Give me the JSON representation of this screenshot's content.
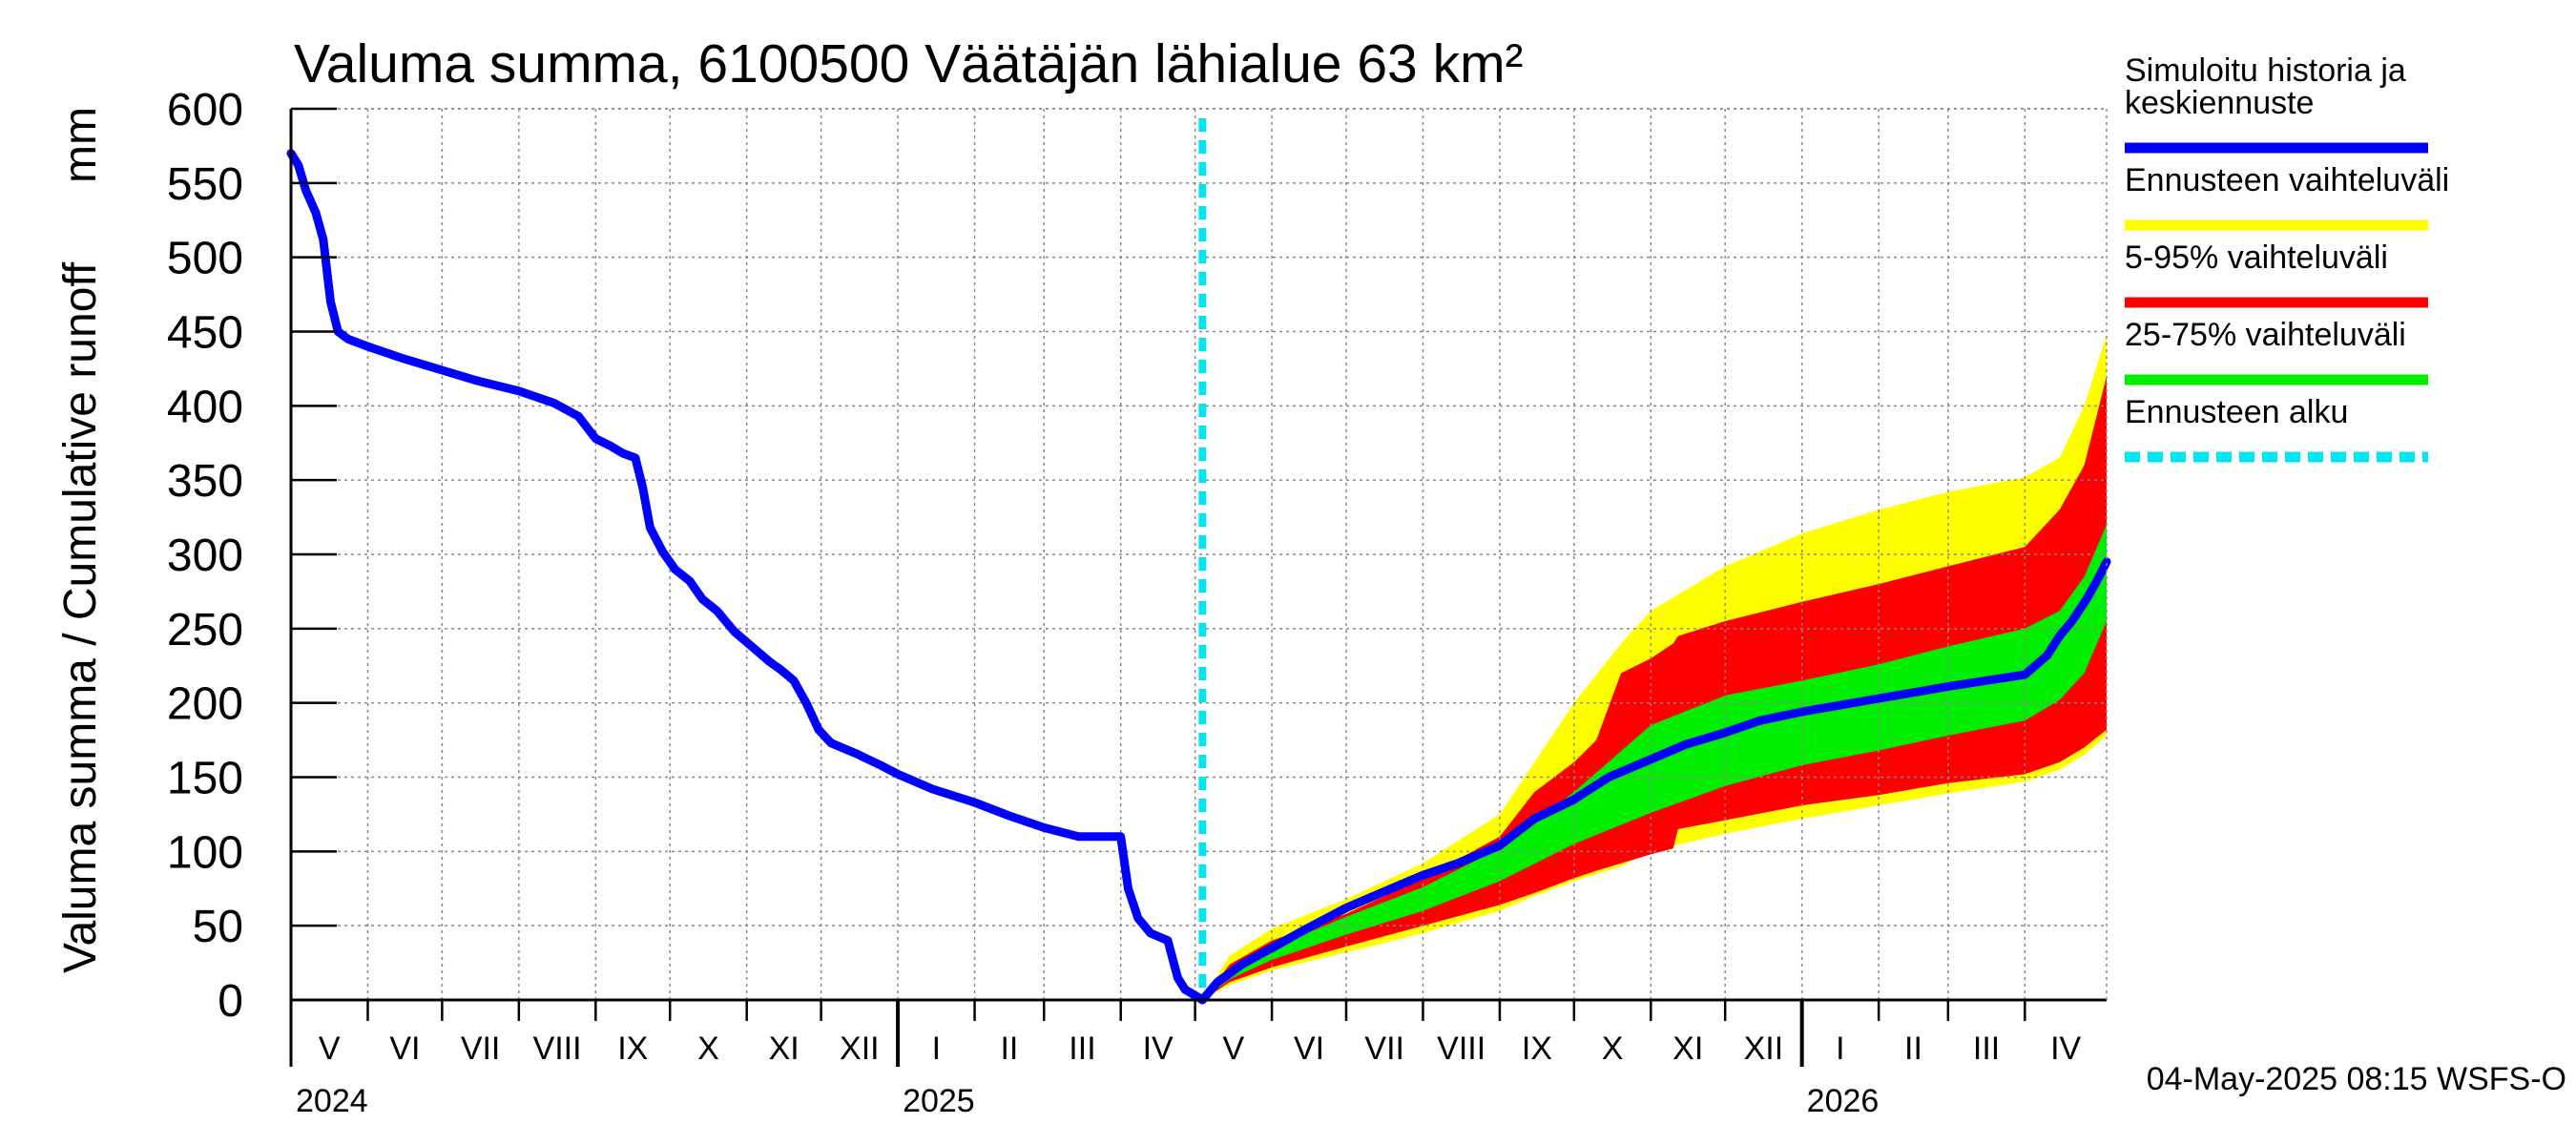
{
  "chart_data": {
    "type": "area",
    "title": "Valuma summa, 6100500 Väätäjän lähialue 63 km²",
    "ylabel": "Valuma summa / Cumulative runoff",
    "yunit": "mm",
    "ylim": [
      0,
      600
    ],
    "yticks": [
      0,
      50,
      100,
      150,
      200,
      250,
      300,
      350,
      400,
      450,
      500,
      550,
      600
    ],
    "xlim": [
      "2024-05-01",
      "2026-05-04"
    ],
    "grid": true,
    "legend_position": "right",
    "months": [
      {
        "label": "V",
        "start": "2024-05-01"
      },
      {
        "label": "VI",
        "start": "2024-06-01"
      },
      {
        "label": "VII",
        "start": "2024-07-01"
      },
      {
        "label": "VIII",
        "start": "2024-08-01"
      },
      {
        "label": "IX",
        "start": "2024-09-01"
      },
      {
        "label": "X",
        "start": "2024-10-01"
      },
      {
        "label": "XI",
        "start": "2024-11-01"
      },
      {
        "label": "XII",
        "start": "2024-12-01"
      },
      {
        "label": "I",
        "start": "2025-01-01"
      },
      {
        "label": "II",
        "start": "2025-02-01"
      },
      {
        "label": "III",
        "start": "2025-03-01"
      },
      {
        "label": "IV",
        "start": "2025-04-01"
      },
      {
        "label": "V",
        "start": "2025-05-01"
      },
      {
        "label": "VI",
        "start": "2025-06-01"
      },
      {
        "label": "VII",
        "start": "2025-07-01"
      },
      {
        "label": "VIII",
        "start": "2025-08-01"
      },
      {
        "label": "IX",
        "start": "2025-09-01"
      },
      {
        "label": "X",
        "start": "2025-10-01"
      },
      {
        "label": "XI",
        "start": "2025-11-01"
      },
      {
        "label": "XII",
        "start": "2025-12-01"
      },
      {
        "label": "I",
        "start": "2026-01-01"
      },
      {
        "label": "II",
        "start": "2026-02-01"
      },
      {
        "label": "III",
        "start": "2026-03-01"
      },
      {
        "label": "IV",
        "start": "2026-04-01"
      }
    ],
    "years": [
      {
        "label": "2024",
        "date": "2024-05-01"
      },
      {
        "label": "2025",
        "date": "2025-01-01"
      },
      {
        "label": "2026",
        "date": "2026-01-01"
      }
    ],
    "forecast_start": "2025-05-04",
    "series": [
      {
        "name": "Simuloitu historia ja keskiennuste",
        "kind": "line",
        "color": "#0000ff",
        "x": [
          "2024-05-01",
          "2024-05-04",
          "2024-05-07",
          "2024-05-11",
          "2024-05-14",
          "2024-05-17",
          "2024-05-20",
          "2024-05-24",
          "2024-06-01",
          "2024-06-15",
          "2024-07-01",
          "2024-07-15",
          "2024-08-01",
          "2024-08-15",
          "2024-08-25",
          "2024-09-01",
          "2024-09-07",
          "2024-09-12",
          "2024-09-17",
          "2024-09-20",
          "2024-09-23",
          "2024-09-28",
          "2024-10-03",
          "2024-10-09",
          "2024-10-14",
          "2024-10-20",
          "2024-10-27",
          "2024-11-03",
          "2024-11-10",
          "2024-11-15",
          "2024-11-20",
          "2024-11-25",
          "2024-11-30",
          "2024-12-05",
          "2024-12-15",
          "2024-12-25",
          "2025-01-01",
          "2025-01-15",
          "2025-02-01",
          "2025-02-15",
          "2025-03-01",
          "2025-03-15",
          "2025-04-01",
          "2025-04-04",
          "2025-04-08",
          "2025-04-13",
          "2025-04-20",
          "2025-04-24",
          "2025-04-27",
          "2025-05-01",
          "2025-05-04",
          "2025-05-10",
          "2025-05-20",
          "2025-06-01",
          "2025-06-15",
          "2025-07-01",
          "2025-07-15",
          "2025-08-01",
          "2025-08-15",
          "2025-09-01",
          "2025-09-15",
          "2025-10-01",
          "2025-10-15",
          "2025-11-01",
          "2025-11-15",
          "2025-12-01",
          "2025-12-15",
          "2026-01-01",
          "2026-02-01",
          "2026-03-01",
          "2026-04-01",
          "2026-04-10",
          "2026-04-15",
          "2026-04-20",
          "2026-04-26",
          "2026-05-01",
          "2026-05-04"
        ],
        "y": [
          570,
          562,
          545,
          530,
          512,
          470,
          450,
          445,
          440,
          432,
          424,
          417,
          410,
          402,
          393,
          378,
          373,
          368,
          365,
          345,
          318,
          302,
          290,
          282,
          270,
          262,
          248,
          238,
          228,
          222,
          215,
          200,
          182,
          173,
          166,
          158,
          152,
          142,
          133,
          124,
          116,
          110,
          110,
          75,
          55,
          45,
          40,
          15,
          7,
          3,
          0,
          12,
          24,
          35,
          48,
          62,
          72,
          84,
          92,
          104,
          122,
          135,
          150,
          162,
          172,
          180,
          188,
          194,
          203,
          211,
          219,
          232,
          245,
          255,
          270,
          285,
          295
        ]
      },
      {
        "name": "Ennusteen vaihteluväli",
        "kind": "band",
        "color": "#ffff00",
        "x": [
          "2025-05-04",
          "2025-05-15",
          "2025-06-01",
          "2025-07-01",
          "2025-08-01",
          "2025-09-01",
          "2025-09-15",
          "2025-10-01",
          "2025-10-20",
          "2025-11-01",
          "2025-12-01",
          "2026-01-01",
          "2026-02-01",
          "2026-03-01",
          "2026-04-01",
          "2026-04-15",
          "2026-04-25",
          "2026-05-04"
        ],
        "lower": [
          0,
          10,
          20,
          32,
          45,
          60,
          70,
          80,
          90,
          100,
          112,
          122,
          131,
          139,
          147,
          155,
          165,
          178
        ],
        "upper": [
          0,
          30,
          48,
          68,
          92,
          125,
          160,
          200,
          240,
          262,
          292,
          314,
          330,
          342,
          352,
          365,
          400,
          448
        ]
      },
      {
        "name": "5-95% vaihteluväli",
        "kind": "band",
        "color": "#ff0000",
        "x": [
          "2025-05-04",
          "2025-05-15",
          "2025-06-01",
          "2025-07-01",
          "2025-08-01",
          "2025-09-01",
          "2025-09-15",
          "2025-10-01",
          "2025-10-10",
          "2025-10-20",
          "2025-11-01",
          "2025-11-10",
          "2025-11-12",
          "2025-12-01",
          "2026-01-01",
          "2026-02-01",
          "2026-03-01",
          "2026-04-01",
          "2026-04-15",
          "2026-04-25",
          "2026-05-04"
        ],
        "lower": [
          0,
          12,
          22,
          36,
          50,
          64,
          72,
          82,
          87,
          92,
          98,
          102,
          115,
          121,
          131,
          138,
          146,
          152,
          160,
          170,
          182
        ],
        "upper": [
          0,
          24,
          40,
          58,
          82,
          110,
          140,
          160,
          175,
          220,
          230,
          240,
          245,
          255,
          268,
          280,
          292,
          305,
          330,
          360,
          420
        ]
      },
      {
        "name": "25-75% vaihteluväli",
        "kind": "band",
        "color": "#00ee00",
        "x": [
          "2025-05-04",
          "2025-05-15",
          "2025-06-01",
          "2025-07-01",
          "2025-08-01",
          "2025-09-01",
          "2025-10-01",
          "2025-11-01",
          "2025-12-01",
          "2026-01-01",
          "2026-02-01",
          "2026-03-01",
          "2026-04-01",
          "2026-04-15",
          "2026-04-25",
          "2026-05-04"
        ],
        "lower": [
          0,
          14,
          27,
          44,
          60,
          80,
          105,
          126,
          144,
          158,
          168,
          178,
          188,
          202,
          220,
          255
        ],
        "upper": [
          0,
          20,
          35,
          56,
          76,
          102,
          140,
          185,
          205,
          215,
          226,
          238,
          250,
          262,
          285,
          320
        ]
      },
      {
        "name": "Ennusteen alku",
        "kind": "vline",
        "color": "#00e5ee",
        "x": "2025-05-04"
      }
    ]
  },
  "footer": "04-May-2025 08:15 WSFS-O"
}
